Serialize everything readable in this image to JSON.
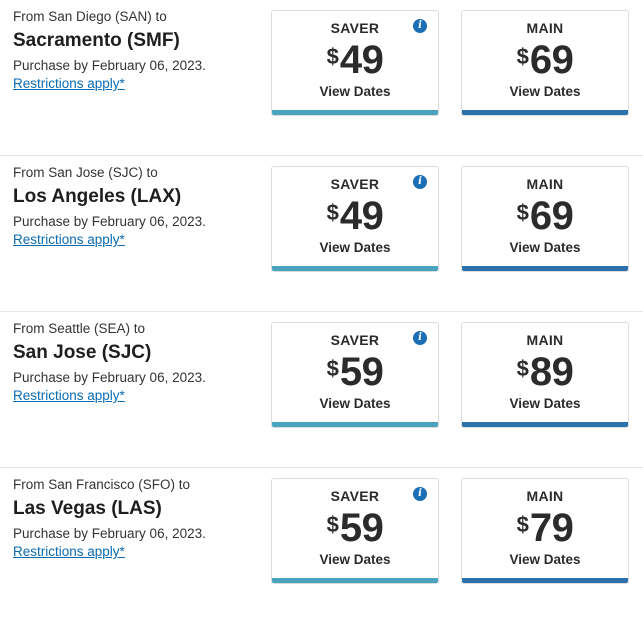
{
  "fares": [
    {
      "from": "From San Diego (SAN) to",
      "destination": "Sacramento (SMF)",
      "purchase_by": "Purchase by February 06, 2023.",
      "restrictions": "Restrictions apply*",
      "saver": {
        "label": "SAVER",
        "currency": "$",
        "price": "49",
        "action": "View Dates"
      },
      "main": {
        "label": "MAIN",
        "currency": "$",
        "price": "69",
        "action": "View Dates"
      }
    },
    {
      "from": "From San Jose (SJC) to",
      "destination": "Los Angeles (LAX)",
      "purchase_by": "Purchase by February 06, 2023.",
      "restrictions": "Restrictions apply*",
      "saver": {
        "label": "SAVER",
        "currency": "$",
        "price": "49",
        "action": "View Dates"
      },
      "main": {
        "label": "MAIN",
        "currency": "$",
        "price": "69",
        "action": "View Dates"
      }
    },
    {
      "from": "From Seattle (SEA) to",
      "destination": "San Jose (SJC)",
      "purchase_by": "Purchase by February 06, 2023.",
      "restrictions": "Restrictions apply*",
      "saver": {
        "label": "SAVER",
        "currency": "$",
        "price": "59",
        "action": "View Dates"
      },
      "main": {
        "label": "MAIN",
        "currency": "$",
        "price": "89",
        "action": "View Dates"
      }
    },
    {
      "from": "From San Francisco (SFO) to",
      "destination": "Las Vegas (LAS)",
      "purchase_by": "Purchase by February 06, 2023.",
      "restrictions": "Restrictions apply*",
      "saver": {
        "label": "SAVER",
        "currency": "$",
        "price": "59",
        "action": "View Dates"
      },
      "main": {
        "label": "MAIN",
        "currency": "$",
        "price": "79",
        "action": "View Dates"
      }
    }
  ],
  "icons": {
    "info": "info-icon",
    "info_glyph": "i"
  },
  "colors": {
    "saver_bar": "#4aa3bd",
    "main_bar": "#2b72ad",
    "link": "#0a6bb2",
    "info": "#1a6fb5"
  }
}
